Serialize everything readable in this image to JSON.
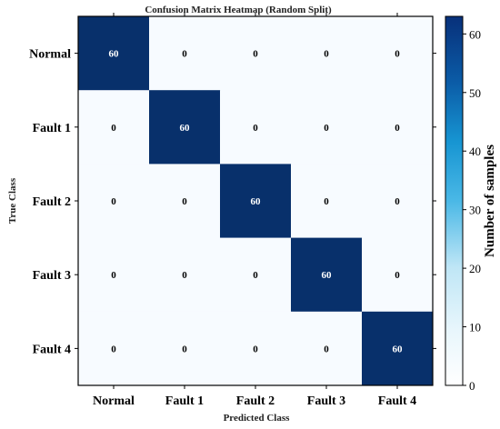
{
  "chart_data": {
    "type": "heatmap",
    "title": "Confusion Matrix Heatmap (Random Split)",
    "xlabel": "Predicted Class",
    "ylabel": "True Class",
    "x_categories": [
      "Normal",
      "Fault 1",
      "Fault 2",
      "Fault 3",
      "Fault 4"
    ],
    "y_categories": [
      "Normal",
      "Fault 1",
      "Fault 2",
      "Fault 3",
      "Fault 4"
    ],
    "values": [
      [
        60,
        0,
        0,
        0,
        0
      ],
      [
        0,
        60,
        0,
        0,
        0
      ],
      [
        0,
        0,
        60,
        0,
        0
      ],
      [
        0,
        0,
        0,
        60,
        0
      ],
      [
        0,
        0,
        0,
        0,
        60
      ]
    ],
    "colorbar": {
      "label": "Number of samples",
      "range": [
        0,
        60
      ],
      "ticks": [
        0,
        10,
        20,
        30,
        40,
        50,
        60
      ],
      "colormap": "Blues",
      "low_color": "#f7fbff",
      "high_color": "#08306b"
    }
  }
}
